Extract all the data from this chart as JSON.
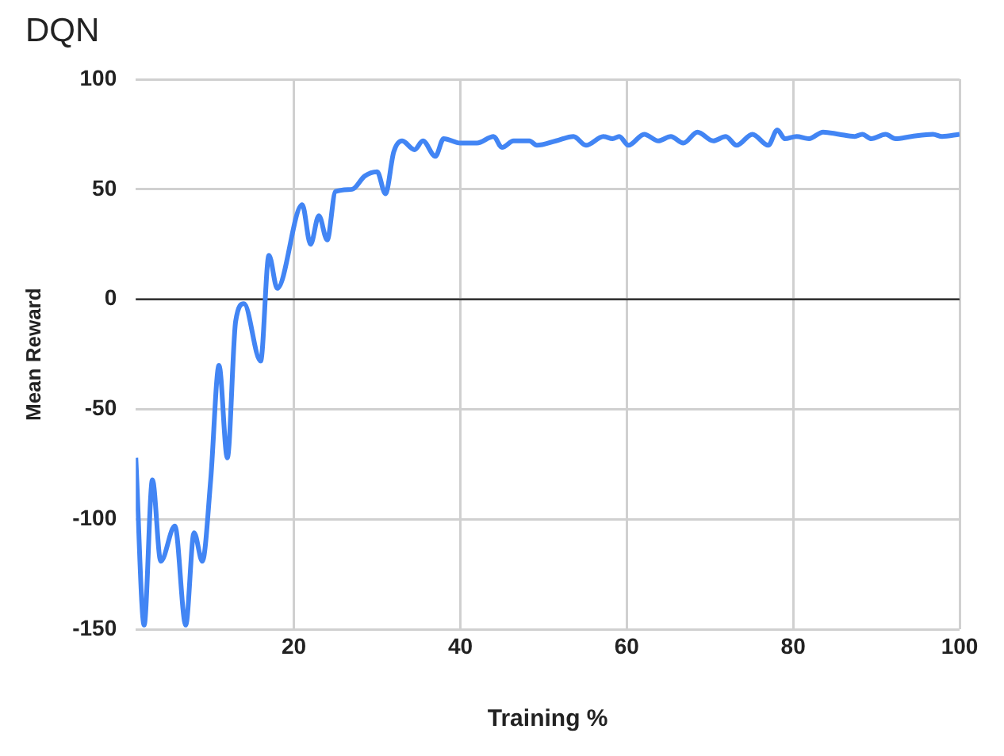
{
  "chart_data": {
    "type": "line",
    "title": "DQN",
    "xlabel": "Training %",
    "ylabel": "Mean Reward",
    "xlim": [
      1,
      100
    ],
    "xticks": [
      20,
      40,
      60,
      80,
      100
    ],
    "ylim": [
      -150,
      100
    ],
    "yticks": [
      -150,
      -100,
      -50,
      0,
      50,
      100
    ],
    "grid": true,
    "legend": false,
    "marker": "none",
    "line_style": "solid",
    "ref_lines": [
      {
        "axis": "y",
        "value": 0,
        "color": "#333333"
      }
    ],
    "series": [
      {
        "color": "#4285f4",
        "x": [
          1,
          2,
          3,
          4,
          5.7,
          7,
          8,
          9,
          10,
          11,
          12,
          13,
          14,
          16,
          17,
          18,
          21,
          22,
          23,
          24,
          25,
          27,
          28.5,
          30,
          31,
          32,
          33,
          34.5,
          35.5,
          37,
          38,
          40,
          42,
          44,
          45,
          46.4,
          48.3,
          49.2,
          51.5,
          53.6,
          55.1,
          57.2,
          58.3,
          59.1,
          60.2,
          62.1,
          63.8,
          65.3,
          66.8,
          68.5,
          70.4,
          71.9,
          73.2,
          75.1,
          77,
          78.1,
          79,
          80.4,
          81.9,
          83.6,
          85.5,
          87.4,
          88.3,
          89.4,
          91.1,
          92.3,
          94.2,
          96.8,
          97.9,
          100
        ],
        "values": [
          -72,
          -148,
          -82,
          -119,
          -103,
          -148,
          -106,
          -119,
          -82,
          -30,
          -72,
          -10,
          -2,
          -28,
          20,
          5,
          43,
          25,
          38,
          27,
          49,
          50,
          56,
          58,
          48,
          67,
          72,
          68,
          72,
          65,
          73,
          71,
          71,
          74,
          69,
          72,
          72,
          70,
          72,
          74,
          70,
          74,
          73,
          74,
          70,
          75,
          72,
          74,
          71,
          76,
          72,
          74,
          70,
          75,
          70,
          77,
          73,
          74,
          73,
          76,
          75,
          74,
          75,
          73,
          75,
          73,
          74,
          75,
          74,
          75
        ]
      }
    ]
  }
}
